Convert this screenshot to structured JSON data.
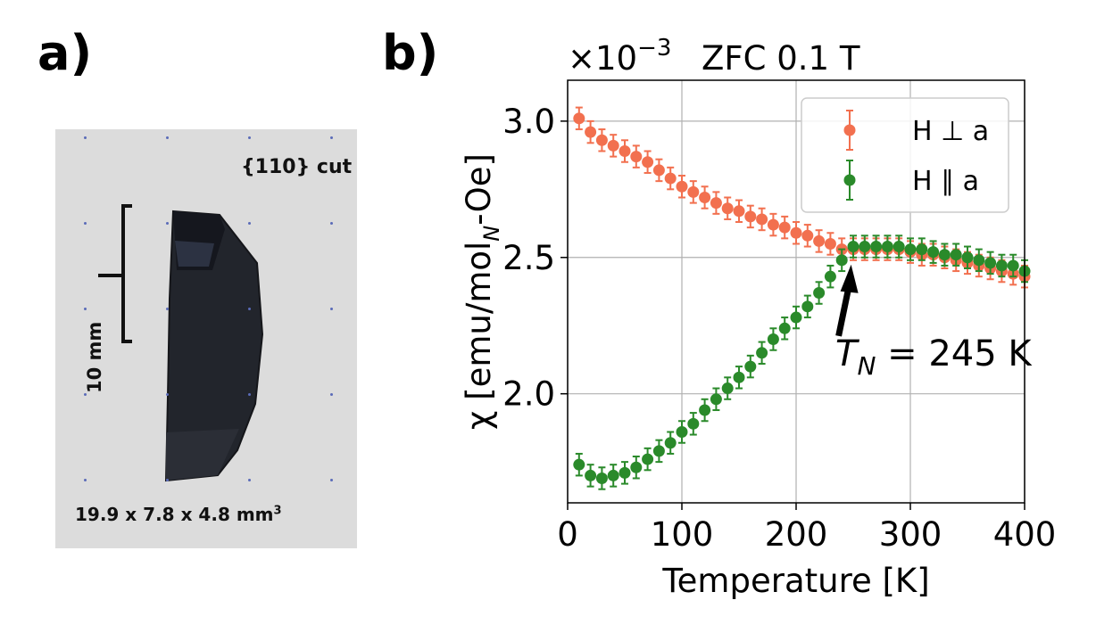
{
  "panels": {
    "a": "a)",
    "b": "b)"
  },
  "photo": {
    "cut_label": "{110} cut",
    "scale_label": "10 mm",
    "dimensions_label": "19.9 x 7.8 x 4.8 mm",
    "dimensions_exponent": "3"
  },
  "chart_data": {
    "type": "scatter",
    "title": "ZFC 0.1 T",
    "y_multiplier": "×10",
    "y_multiplier_exponent": "−3",
    "xlabel": "Temperature [K]",
    "ylabel": "χ [emu/mol",
    "ylabel_sub": "N",
    "ylabel_tail": "-Oe]",
    "xlim": [
      0,
      400
    ],
    "ylim": [
      1.6,
      3.15
    ],
    "xticks": [
      0,
      100,
      200,
      300,
      400
    ],
    "yticks": [
      2.0,
      2.5,
      3.0
    ],
    "ytick_labels": [
      "2.0",
      "2.5",
      "3.0"
    ],
    "grid": true,
    "legend_position": "top-right",
    "annotation": {
      "text_prefix": "T",
      "text_sub": "N",
      "text_suffix": " = 245 K",
      "x": 245,
      "y": 2.5
    },
    "x": [
      10,
      20,
      30,
      40,
      50,
      60,
      70,
      80,
      90,
      100,
      110,
      120,
      130,
      140,
      150,
      160,
      170,
      180,
      190,
      200,
      210,
      220,
      230,
      240,
      250,
      260,
      270,
      280,
      290,
      300,
      310,
      320,
      330,
      340,
      350,
      360,
      370,
      380,
      390,
      400
    ],
    "series": [
      {
        "name": "H ⊥ a",
        "color": "#f2704f",
        "values": [
          3.01,
          2.96,
          2.93,
          2.91,
          2.89,
          2.87,
          2.85,
          2.82,
          2.79,
          2.76,
          2.74,
          2.72,
          2.7,
          2.68,
          2.67,
          2.65,
          2.64,
          2.62,
          2.61,
          2.59,
          2.58,
          2.56,
          2.55,
          2.53,
          2.53,
          2.53,
          2.53,
          2.53,
          2.53,
          2.52,
          2.51,
          2.51,
          2.5,
          2.49,
          2.48,
          2.47,
          2.46,
          2.45,
          2.44,
          2.43
        ],
        "error": 0.04
      },
      {
        "name": "H ∥ a",
        "color": "#2a8a2a",
        "values": [
          1.74,
          1.7,
          1.69,
          1.7,
          1.71,
          1.73,
          1.76,
          1.79,
          1.82,
          1.86,
          1.89,
          1.94,
          1.98,
          2.02,
          2.06,
          2.1,
          2.15,
          2.2,
          2.24,
          2.28,
          2.32,
          2.37,
          2.43,
          2.49,
          2.54,
          2.54,
          2.54,
          2.54,
          2.54,
          2.53,
          2.53,
          2.52,
          2.51,
          2.51,
          2.5,
          2.49,
          2.48,
          2.47,
          2.47,
          2.45
        ],
        "error": 0.04
      }
    ]
  }
}
